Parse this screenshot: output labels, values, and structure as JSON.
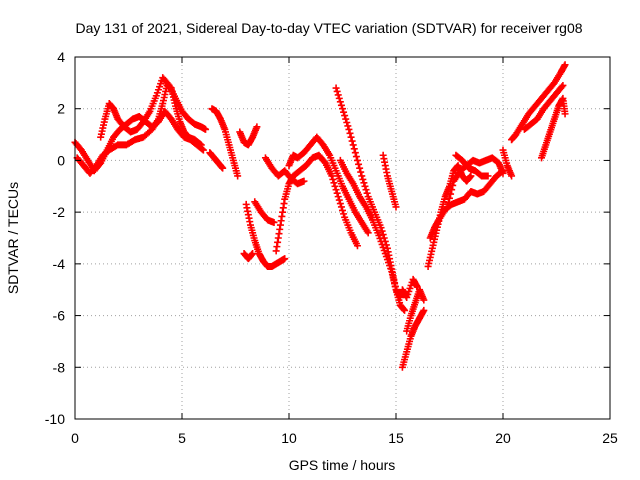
{
  "chart_data": {
    "type": "scatter",
    "title": "Day 131 of 2021, Sidereal Day-to-day VTEC variation (SDTVAR) for receiver rg08",
    "xlabel": "GPS time / hours",
    "ylabel": "SDTVAR / TECUs",
    "xlim": [
      0,
      25
    ],
    "ylim": [
      -10,
      4
    ],
    "xticks": [
      0,
      5,
      10,
      15,
      20,
      25
    ],
    "yticks": [
      -10,
      -8,
      -6,
      -4,
      -2,
      0,
      2,
      4
    ],
    "grid": true,
    "marker": "+",
    "color": "#ff0000",
    "series": [
      {
        "points": [
          [
            0.0,
            0.7
          ],
          [
            0.3,
            0.4
          ],
          [
            0.6,
            0.0
          ],
          [
            0.9,
            -0.4
          ],
          [
            1.2,
            -0.1
          ],
          [
            1.5,
            0.4
          ],
          [
            1.8,
            0.9
          ],
          [
            2.1,
            1.2
          ],
          [
            2.4,
            1.4
          ],
          [
            2.7,
            1.6
          ],
          [
            3.0,
            1.7
          ],
          [
            3.3,
            1.5
          ],
          [
            3.6,
            1.3
          ],
          [
            3.9,
            1.5
          ],
          [
            4.2,
            1.9
          ],
          [
            4.5,
            1.6
          ],
          [
            4.8,
            1.2
          ],
          [
            5.1,
            0.9
          ],
          [
            5.4,
            0.8
          ],
          [
            5.7,
            0.6
          ],
          [
            6.0,
            0.4
          ]
        ]
      },
      {
        "points": [
          [
            0.1,
            0.1
          ],
          [
            0.4,
            -0.2
          ],
          [
            0.7,
            -0.5
          ],
          [
            1.0,
            -0.2
          ],
          [
            1.3,
            0.2
          ],
          [
            1.6,
            0.4
          ],
          [
            2.0,
            0.6
          ],
          [
            2.4,
            0.6
          ],
          [
            2.8,
            0.8
          ],
          [
            3.2,
            0.9
          ],
          [
            3.6,
            1.2
          ],
          [
            3.9,
            1.6
          ],
          [
            4.1,
            2.2
          ],
          [
            4.3,
            2.9
          ],
          [
            4.5,
            2.8
          ],
          [
            4.7,
            2.1
          ],
          [
            4.9,
            1.5
          ],
          [
            5.1,
            1.1
          ],
          [
            5.3,
            0.9
          ],
          [
            5.6,
            0.8
          ],
          [
            5.9,
            0.6
          ]
        ]
      },
      {
        "points": [
          [
            1.2,
            0.9
          ],
          [
            1.4,
            1.6
          ],
          [
            1.6,
            2.2
          ],
          [
            1.8,
            2.0
          ],
          [
            2.0,
            1.6
          ],
          [
            2.3,
            1.3
          ],
          [
            2.6,
            1.1
          ],
          [
            2.9,
            1.2
          ],
          [
            3.2,
            1.5
          ],
          [
            3.5,
            1.9
          ],
          [
            3.8,
            2.5
          ],
          [
            4.1,
            3.2
          ],
          [
            4.4,
            2.9
          ],
          [
            4.7,
            2.4
          ],
          [
            5.0,
            1.9
          ],
          [
            5.3,
            1.6
          ],
          [
            5.6,
            1.4
          ],
          [
            5.9,
            1.3
          ],
          [
            6.1,
            1.2
          ]
        ]
      },
      {
        "points": [
          [
            6.4,
            2.0
          ],
          [
            6.6,
            1.9
          ],
          [
            6.8,
            1.6
          ],
          [
            7.0,
            1.2
          ],
          [
            7.2,
            0.6
          ],
          [
            7.4,
            0.0
          ],
          [
            7.6,
            -0.6
          ]
        ]
      },
      {
        "points": [
          [
            6.3,
            0.3
          ],
          [
            6.5,
            0.1
          ],
          [
            6.7,
            -0.1
          ],
          [
            6.9,
            -0.3
          ]
        ]
      },
      {
        "points": [
          [
            7.7,
            1.1
          ],
          [
            7.9,
            0.7
          ],
          [
            8.1,
            0.6
          ],
          [
            8.3,
            0.9
          ],
          [
            8.5,
            1.3
          ]
        ]
      },
      {
        "points": [
          [
            8.0,
            -1.7
          ],
          [
            8.2,
            -2.5
          ],
          [
            8.4,
            -3.1
          ],
          [
            8.6,
            -3.6
          ],
          [
            8.8,
            -3.9
          ],
          [
            9.0,
            -4.1
          ],
          [
            9.2,
            -4.1
          ],
          [
            9.4,
            -4.0
          ],
          [
            9.6,
            -3.9
          ],
          [
            9.8,
            -3.8
          ]
        ]
      },
      {
        "points": [
          [
            7.9,
            -3.6
          ],
          [
            8.1,
            -3.8
          ],
          [
            8.3,
            -3.6
          ]
        ]
      },
      {
        "points": [
          [
            8.4,
            -1.6
          ],
          [
            8.7,
            -2.0
          ],
          [
            9.0,
            -2.3
          ],
          [
            9.3,
            -2.4
          ]
        ]
      },
      {
        "points": [
          [
            9.4,
            -3.5
          ],
          [
            9.6,
            -2.5
          ],
          [
            9.8,
            -1.5
          ],
          [
            10.0,
            -0.9
          ],
          [
            10.2,
            -0.6
          ],
          [
            10.5,
            -0.4
          ],
          [
            10.8,
            -0.2
          ],
          [
            11.1,
            0.1
          ],
          [
            11.4,
            0.2
          ],
          [
            11.7,
            -0.1
          ],
          [
            12.0,
            -0.6
          ],
          [
            12.3,
            -1.4
          ],
          [
            12.6,
            -2.2
          ],
          [
            12.9,
            -2.8
          ],
          [
            13.2,
            -3.3
          ]
        ]
      },
      {
        "points": [
          [
            10.0,
            -0.2
          ],
          [
            10.2,
            0.2
          ],
          [
            10.4,
            0.1
          ],
          [
            10.7,
            0.3
          ],
          [
            11.0,
            0.6
          ],
          [
            11.3,
            0.9
          ],
          [
            11.6,
            0.6
          ],
          [
            11.9,
            0.2
          ],
          [
            12.2,
            -0.4
          ],
          [
            12.5,
            -1.0
          ],
          [
            12.8,
            -1.5
          ],
          [
            13.1,
            -2.0
          ],
          [
            13.4,
            -2.4
          ],
          [
            13.7,
            -2.8
          ]
        ]
      },
      {
        "points": [
          [
            8.9,
            0.1
          ],
          [
            9.2,
            -0.3
          ],
          [
            9.5,
            -0.6
          ],
          [
            9.8,
            -0.4
          ],
          [
            10.1,
            -0.7
          ],
          [
            10.4,
            -0.9
          ],
          [
            10.7,
            -0.8
          ]
        ]
      },
      {
        "points": [
          [
            12.2,
            2.8
          ],
          [
            12.5,
            2.0
          ],
          [
            12.8,
            1.2
          ],
          [
            13.1,
            0.3
          ],
          [
            13.4,
            -0.6
          ],
          [
            13.7,
            -1.4
          ],
          [
            14.0,
            -2.0
          ],
          [
            14.3,
            -2.6
          ],
          [
            14.6,
            -3.4
          ],
          [
            14.8,
            -4.2
          ],
          [
            15.0,
            -5.0
          ],
          [
            15.2,
            -5.6
          ],
          [
            15.4,
            -5.8
          ]
        ]
      },
      {
        "points": [
          [
            12.4,
            0.0
          ],
          [
            12.7,
            -0.5
          ],
          [
            13.0,
            -0.9
          ],
          [
            13.3,
            -1.4
          ],
          [
            13.6,
            -1.8
          ],
          [
            13.9,
            -2.3
          ],
          [
            14.2,
            -2.9
          ],
          [
            14.5,
            -3.6
          ],
          [
            14.8,
            -4.3
          ],
          [
            15.0,
            -5.0
          ],
          [
            15.2,
            -5.3
          ]
        ]
      },
      {
        "points": [
          [
            14.4,
            0.2
          ],
          [
            14.6,
            -0.6
          ],
          [
            14.8,
            -1.2
          ],
          [
            15.0,
            -1.8
          ]
        ]
      },
      {
        "points": [
          [
            15.3,
            -8.0
          ],
          [
            15.5,
            -7.4
          ],
          [
            15.7,
            -6.8
          ],
          [
            15.9,
            -6.4
          ],
          [
            16.1,
            -6.1
          ],
          [
            16.3,
            -5.8
          ]
        ]
      },
      {
        "points": [
          [
            15.5,
            -6.6
          ],
          [
            15.7,
            -6.0
          ],
          [
            15.9,
            -5.5
          ],
          [
            16.1,
            -5.0
          ],
          [
            16.3,
            -5.4
          ]
        ]
      },
      {
        "points": [
          [
            15.3,
            -5.0
          ],
          [
            15.5,
            -5.3
          ],
          [
            15.8,
            -4.6
          ],
          [
            16.0,
            -4.9
          ]
        ]
      },
      {
        "points": [
          [
            16.5,
            -4.1
          ],
          [
            16.7,
            -3.4
          ],
          [
            16.9,
            -2.7
          ],
          [
            17.1,
            -2.0
          ],
          [
            17.3,
            -1.4
          ],
          [
            17.5,
            -1.0
          ],
          [
            17.7,
            -0.4
          ],
          [
            17.9,
            -0.2
          ],
          [
            18.1,
            -0.6
          ],
          [
            18.3,
            -0.8
          ],
          [
            18.5,
            -0.6
          ]
        ]
      },
      {
        "points": [
          [
            16.6,
            -3.0
          ],
          [
            16.8,
            -2.6
          ],
          [
            17.0,
            -2.3
          ],
          [
            17.3,
            -1.9
          ],
          [
            17.6,
            -1.7
          ],
          [
            17.9,
            -1.6
          ],
          [
            18.2,
            -1.5
          ],
          [
            18.5,
            -1.2
          ],
          [
            18.8,
            -1.3
          ],
          [
            19.1,
            -1.2
          ],
          [
            19.4,
            -0.9
          ],
          [
            19.7,
            -0.6
          ],
          [
            20.0,
            -0.4
          ]
        ]
      },
      {
        "points": [
          [
            17.4,
            -1.8
          ],
          [
            17.7,
            -0.8
          ],
          [
            18.0,
            -0.4
          ],
          [
            18.3,
            -0.2
          ],
          [
            18.6,
            0.0
          ],
          [
            18.9,
            -0.1
          ],
          [
            19.2,
            0.0
          ],
          [
            19.5,
            0.1
          ],
          [
            19.8,
            -0.1
          ],
          [
            20.0,
            -0.5
          ]
        ]
      },
      {
        "points": [
          [
            17.8,
            0.2
          ],
          [
            18.1,
            0.0
          ],
          [
            18.4,
            -0.3
          ],
          [
            18.7,
            -0.4
          ],
          [
            19.0,
            -0.6
          ],
          [
            19.3,
            -0.6
          ]
        ]
      },
      {
        "points": [
          [
            20.4,
            0.8
          ],
          [
            20.6,
            1.0
          ],
          [
            20.9,
            1.4
          ],
          [
            21.2,
            1.8
          ],
          [
            21.5,
            2.1
          ],
          [
            21.8,
            2.4
          ],
          [
            22.1,
            2.7
          ],
          [
            22.4,
            3.0
          ],
          [
            22.7,
            3.4
          ],
          [
            22.9,
            3.7
          ]
        ]
      },
      {
        "points": [
          [
            21.0,
            1.2
          ],
          [
            21.3,
            1.4
          ],
          [
            21.6,
            1.6
          ],
          [
            21.9,
            2.0
          ],
          [
            22.2,
            2.3
          ],
          [
            22.5,
            2.6
          ],
          [
            22.8,
            2.9
          ]
        ]
      },
      {
        "points": [
          [
            21.8,
            0.1
          ],
          [
            22.0,
            0.6
          ],
          [
            22.2,
            1.1
          ],
          [
            22.4,
            1.6
          ],
          [
            22.6,
            2.1
          ],
          [
            22.8,
            2.4
          ],
          [
            22.9,
            1.8
          ]
        ]
      },
      {
        "points": [
          [
            20.0,
            0.4
          ],
          [
            20.2,
            -0.2
          ],
          [
            20.4,
            -0.6
          ]
        ]
      }
    ]
  }
}
